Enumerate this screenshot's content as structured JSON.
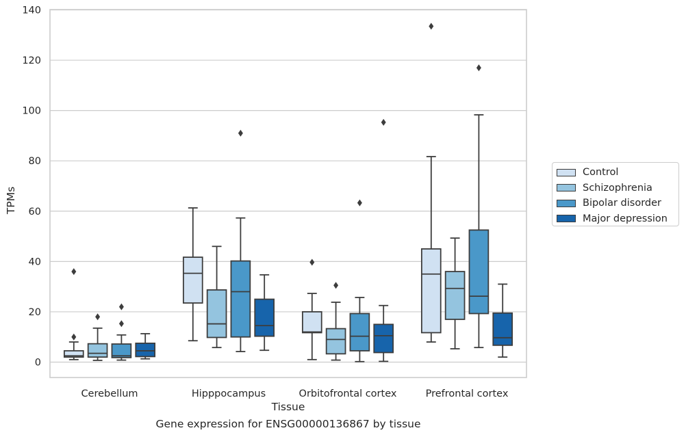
{
  "caption": "Gene expression for ENSG00000136867 by tissue",
  "chart_data": {
    "type": "box",
    "xlabel": "Tissue",
    "ylabel": "TPMs",
    "ylim": [
      -6,
      140
    ],
    "yticks": [
      0,
      20,
      40,
      60,
      80,
      100,
      120,
      140
    ],
    "grid": true,
    "legend_position": "right",
    "categories": [
      "Cerebellum",
      "Hipppocampus",
      "Orbitofrontal cortex",
      "Prefrontal cortex"
    ],
    "series": [
      {
        "name": "Control",
        "color": "#d0e1f2",
        "boxes": [
          {
            "whisker_low": 1.0,
            "q1": 2.0,
            "median": 2.5,
            "q3": 4.5,
            "whisker_high": 8.0,
            "outliers": [
              10.0,
              36.0
            ]
          },
          {
            "whisker_low": 8.5,
            "q1": 23.5,
            "median": 35.3,
            "q3": 41.7,
            "whisker_high": 61.3,
            "outliers": []
          },
          {
            "whisker_low": 1.0,
            "q1": 11.7,
            "median": 12.0,
            "q3": 20.0,
            "whisker_high": 27.3,
            "outliers": [
              39.7
            ]
          },
          {
            "whisker_low": 8.0,
            "q1": 11.7,
            "median": 35.0,
            "q3": 45.0,
            "whisker_high": 81.7,
            "outliers": [
              133.5
            ]
          }
        ]
      },
      {
        "name": "Schizophrenia",
        "color": "#94c4df",
        "boxes": [
          {
            "whisker_low": 0.7,
            "q1": 2.0,
            "median": 3.5,
            "q3": 7.3,
            "whisker_high": 13.5,
            "outliers": [
              18.0
            ]
          },
          {
            "whisker_low": 5.8,
            "q1": 9.8,
            "median": 15.2,
            "q3": 28.7,
            "whisker_high": 46.0,
            "outliers": []
          },
          {
            "whisker_low": 0.8,
            "q1": 3.3,
            "median": 9.0,
            "q3": 13.3,
            "whisker_high": 23.8,
            "outliers": [
              30.5
            ]
          },
          {
            "whisker_low": 5.3,
            "q1": 17.0,
            "median": 29.3,
            "q3": 36.0,
            "whisker_high": 49.3,
            "outliers": []
          }
        ]
      },
      {
        "name": "Bipolar disorder",
        "color": "#4a98c9",
        "boxes": [
          {
            "whisker_low": 0.8,
            "q1": 1.8,
            "median": 2.5,
            "q3": 7.2,
            "whisker_high": 10.8,
            "outliers": [
              15.3,
              22.0
            ]
          },
          {
            "whisker_low": 4.2,
            "q1": 10.0,
            "median": 28.0,
            "q3": 40.2,
            "whisker_high": 57.3,
            "outliers": [
              91.0
            ]
          },
          {
            "whisker_low": 0.2,
            "q1": 4.5,
            "median": 10.3,
            "q3": 19.3,
            "whisker_high": 25.7,
            "outliers": [
              63.3
            ]
          },
          {
            "whisker_low": 5.8,
            "q1": 19.3,
            "median": 26.2,
            "q3": 52.5,
            "whisker_high": 98.3,
            "outliers": [
              117.0
            ]
          }
        ]
      },
      {
        "name": "Major depression",
        "color": "#1764ab",
        "boxes": [
          {
            "whisker_low": 1.3,
            "q1": 2.2,
            "median": 4.5,
            "q3": 7.5,
            "whisker_high": 11.3,
            "outliers": []
          },
          {
            "whisker_low": 4.7,
            "q1": 10.3,
            "median": 14.5,
            "q3": 25.0,
            "whisker_high": 34.7,
            "outliers": []
          },
          {
            "whisker_low": 0.3,
            "q1": 3.8,
            "median": 10.5,
            "q3": 15.0,
            "whisker_high": 22.5,
            "outliers": [
              95.3
            ]
          },
          {
            "whisker_low": 2.0,
            "q1": 6.7,
            "median": 9.7,
            "q3": 19.5,
            "whisker_high": 31.0,
            "outliers": []
          }
        ]
      }
    ]
  }
}
